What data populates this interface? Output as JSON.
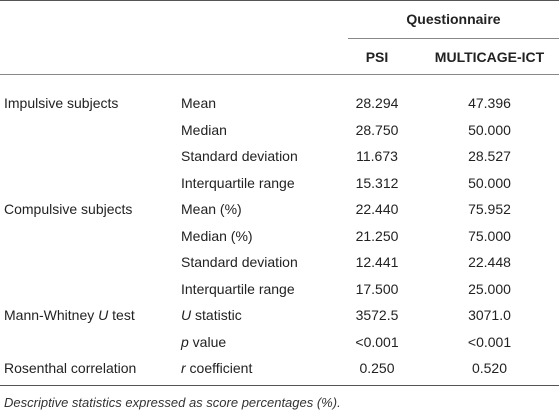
{
  "header": {
    "group_label": "Questionnaire",
    "col_psi": "PSI",
    "col_multicage": "MULTICAGE-ICT"
  },
  "rows": [
    {
      "group": "Impulsive subjects",
      "stat": "Mean",
      "psi": "28.294",
      "mc": "47.396"
    },
    {
      "group": "",
      "stat": "Median",
      "psi": "28.750",
      "mc": "50.000"
    },
    {
      "group": "",
      "stat": "Standard deviation",
      "psi": "11.673",
      "mc": "28.527"
    },
    {
      "group": "",
      "stat": "Interquartile range",
      "psi": "15.312",
      "mc": "50.000"
    },
    {
      "group": "Compulsive subjects",
      "stat": "Mean (%)",
      "psi": "22.440",
      "mc": "75.952"
    },
    {
      "group": "",
      "stat": "Median (%)",
      "psi": "21.250",
      "mc": "75.000"
    },
    {
      "group": "",
      "stat": "Standard deviation",
      "psi": "12.441",
      "mc": "22.448"
    },
    {
      "group": "",
      "stat": "Interquartile range",
      "psi": "17.500",
      "mc": "25.000"
    },
    {
      "group_pre": "Mann-Whitney ",
      "group_it": "U",
      "group_post": " test",
      "stat_it": "U",
      "stat_post": " statistic",
      "psi": "3572.5",
      "mc": "3071.0"
    },
    {
      "group": "",
      "stat_it": "p",
      "stat_post": " value",
      "psi": "<0.001",
      "mc": "<0.001"
    },
    {
      "group": "Rosenthal correlation",
      "stat_it": "r",
      "stat_post": " coefficient",
      "psi": "0.250",
      "mc": "0.520"
    }
  ],
  "footnote": "Descriptive statistics expressed as score percentages (%)."
}
